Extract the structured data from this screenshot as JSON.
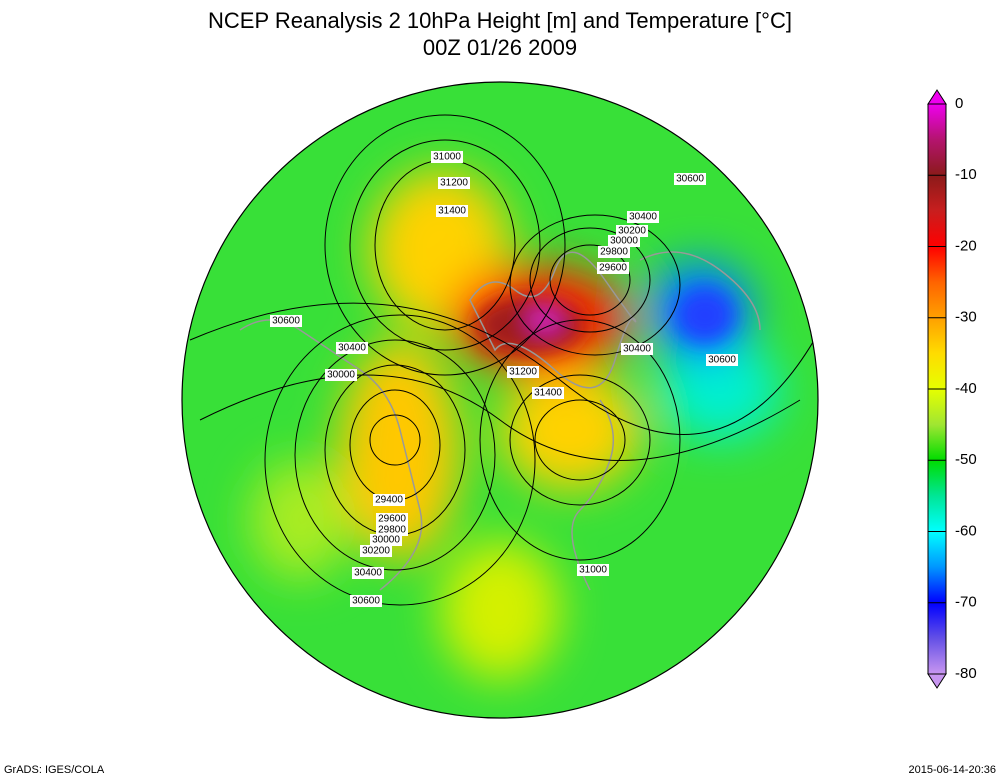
{
  "title": {
    "line1": "NCEP Reanalysis 2   10hPa Height [m] and Temperature [°C]",
    "line2": "00Z 01/26 2009"
  },
  "colorbar": {
    "lim": [
      -80,
      0
    ],
    "ticks": [
      0,
      -10,
      -20,
      -30,
      -40,
      -50,
      -60,
      -70,
      -80
    ]
  },
  "contour_labels": [
    31000,
    31200,
    31400,
    30600,
    30400,
    30200,
    30000,
    29800,
    29600,
    30600,
    30400,
    30000,
    31200,
    31400,
    30400,
    30600,
    29400,
    29600,
    29800,
    30000,
    30200,
    30400,
    30600,
    31000
  ],
  "footer": {
    "left": "GrADS: IGES/COLA",
    "right": "2015-06-14-20:36"
  }
}
